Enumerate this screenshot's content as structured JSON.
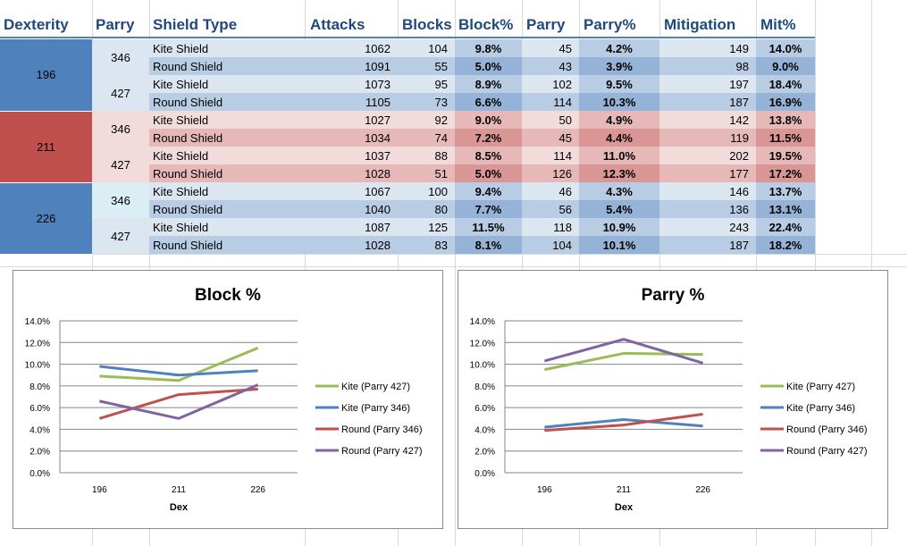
{
  "headers": [
    "Dexterity",
    "Parry",
    "Shield Type",
    "Attacks",
    "Blocks",
    "Block%",
    "Parry",
    "Parry%",
    "Mitigation",
    "Mit%"
  ],
  "rows": [
    {
      "dex": "196",
      "parry": "346",
      "shield": "Kite Shield",
      "attacks": "1062",
      "blocks": "104",
      "block_pct": "9.8%",
      "parries": "45",
      "parry_pct": "4.2%",
      "mitigation": "149",
      "mit_pct": "14.0%"
    },
    {
      "dex": "196",
      "parry": "346",
      "shield": "Round Shield",
      "attacks": "1091",
      "blocks": "55",
      "block_pct": "5.0%",
      "parries": "43",
      "parry_pct": "3.9%",
      "mitigation": "98",
      "mit_pct": "9.0%"
    },
    {
      "dex": "196",
      "parry": "427",
      "shield": "Kite Shield",
      "attacks": "1073",
      "blocks": "95",
      "block_pct": "8.9%",
      "parries": "102",
      "parry_pct": "9.5%",
      "mitigation": "197",
      "mit_pct": "18.4%"
    },
    {
      "dex": "196",
      "parry": "427",
      "shield": "Round Shield",
      "attacks": "1105",
      "blocks": "73",
      "block_pct": "6.6%",
      "parries": "114",
      "parry_pct": "10.3%",
      "mitigation": "187",
      "mit_pct": "16.9%"
    },
    {
      "dex": "211",
      "parry": "346",
      "shield": "Kite Shield",
      "attacks": "1027",
      "blocks": "92",
      "block_pct": "9.0%",
      "parries": "50",
      "parry_pct": "4.9%",
      "mitigation": "142",
      "mit_pct": "13.8%"
    },
    {
      "dex": "211",
      "parry": "346",
      "shield": "Round Shield",
      "attacks": "1034",
      "blocks": "74",
      "block_pct": "7.2%",
      "parries": "45",
      "parry_pct": "4.4%",
      "mitigation": "119",
      "mit_pct": "11.5%"
    },
    {
      "dex": "211",
      "parry": "427",
      "shield": "Kite Shield",
      "attacks": "1037",
      "blocks": "88",
      "block_pct": "8.5%",
      "parries": "114",
      "parry_pct": "11.0%",
      "mitigation": "202",
      "mit_pct": "19.5%"
    },
    {
      "dex": "211",
      "parry": "427",
      "shield": "Round Shield",
      "attacks": "1028",
      "blocks": "51",
      "block_pct": "5.0%",
      "parries": "126",
      "parry_pct": "12.3%",
      "mitigation": "177",
      "mit_pct": "17.2%"
    },
    {
      "dex": "226",
      "parry": "346",
      "shield": "Kite Shield",
      "attacks": "1067",
      "blocks": "100",
      "block_pct": "9.4%",
      "parries": "46",
      "parry_pct": "4.3%",
      "mitigation": "146",
      "mit_pct": "13.7%"
    },
    {
      "dex": "226",
      "parry": "346",
      "shield": "Round Shield",
      "attacks": "1040",
      "blocks": "80",
      "block_pct": "7.7%",
      "parries": "56",
      "parry_pct": "5.4%",
      "mitigation": "136",
      "mit_pct": "13.1%"
    },
    {
      "dex": "226",
      "parry": "427",
      "shield": "Kite Shield",
      "attacks": "1087",
      "blocks": "125",
      "block_pct": "11.5%",
      "parries": "118",
      "parry_pct": "10.9%",
      "mitigation": "243",
      "mit_pct": "22.4%"
    },
    {
      "dex": "226",
      "parry": "427",
      "shield": "Round Shield",
      "attacks": "1028",
      "blocks": "83",
      "block_pct": "8.1%",
      "parries": "104",
      "parry_pct": "10.1%",
      "mitigation": "187",
      "mit_pct": "18.2%"
    }
  ],
  "colors": {
    "dex_blue": "#4f81bd",
    "dex_red": "#c0504d",
    "kite": "#9bbb59",
    "kite346": "#4f81bd",
    "round346": "#c0504d",
    "round427": "#8064a2"
  },
  "chart_data": [
    {
      "type": "line",
      "title": "Block %",
      "xlabel": "Dex",
      "ylabel": "",
      "categories": [
        "196",
        "211",
        "226"
      ],
      "ylim": [
        0,
        14
      ],
      "yticks": [
        "0.0%",
        "2.0%",
        "4.0%",
        "6.0%",
        "8.0%",
        "10.0%",
        "12.0%",
        "14.0%"
      ],
      "grid": true,
      "legend": "right",
      "series": [
        {
          "name": "Kite (Parry 427)",
          "color": "#9bbb59",
          "values": [
            8.9,
            8.5,
            11.5
          ]
        },
        {
          "name": "Kite (Parry 346)",
          "color": "#4f81bd",
          "values": [
            9.8,
            9.0,
            9.4
          ]
        },
        {
          "name": "Round (Parry 346)",
          "color": "#c0504d",
          "values": [
            5.0,
            7.2,
            7.7
          ]
        },
        {
          "name": "Round (Parry 427)",
          "color": "#8064a2",
          "values": [
            6.6,
            5.0,
            8.1
          ]
        }
      ]
    },
    {
      "type": "line",
      "title": "Parry %",
      "xlabel": "Dex",
      "ylabel": "",
      "categories": [
        "196",
        "211",
        "226"
      ],
      "ylim": [
        0,
        14
      ],
      "yticks": [
        "0.0%",
        "2.0%",
        "4.0%",
        "6.0%",
        "8.0%",
        "10.0%",
        "12.0%",
        "14.0%"
      ],
      "grid": true,
      "legend": "right",
      "series": [
        {
          "name": "Kite (Parry 427)",
          "color": "#9bbb59",
          "values": [
            9.5,
            11.0,
            10.9
          ]
        },
        {
          "name": "Kite (Parry 346)",
          "color": "#4f81bd",
          "values": [
            4.2,
            4.9,
            4.3
          ]
        },
        {
          "name": "Round (Parry 346)",
          "color": "#c0504d",
          "values": [
            3.9,
            4.4,
            5.4
          ]
        },
        {
          "name": "Round (Parry 427)",
          "color": "#8064a2",
          "values": [
            10.3,
            12.3,
            10.1
          ]
        }
      ]
    }
  ]
}
